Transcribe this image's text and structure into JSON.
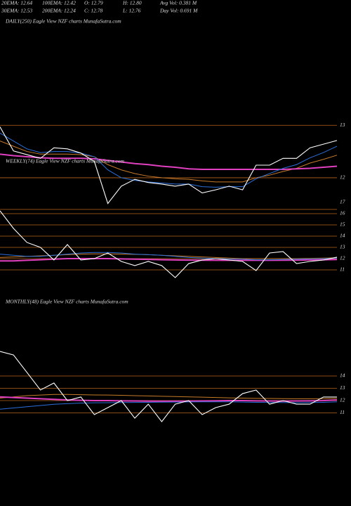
{
  "header": {
    "rows": [
      [
        "20EMA: 12.64",
        "100EMA: 12.42",
        "O: 12.79",
        "H: 12.80",
        "Avg Vol: 0.381 M"
      ],
      [
        "30EMA: 12.53",
        "200EMA: 12.24",
        "C: 12.78",
        "L: 12.76",
        "Day Vol: 0.691 M"
      ]
    ]
  },
  "chart_data": [
    {
      "type": "line",
      "title": "DAILY(250) Eagle  View  NZF charts MunafaSutra.com",
      "ylim": [
        11.37,
        13.11
      ],
      "yticks": [
        13,
        12
      ],
      "grid": true,
      "annotation": "17",
      "series": [
        {
          "color": "#c87a2a",
          "values": [
            12.7,
            12.6,
            12.5,
            12.45,
            12.45,
            12.45,
            12.44,
            12.4,
            12.25,
            12.15,
            12.08,
            12.03,
            12.0,
            11.98,
            11.97,
            11.94,
            11.92,
            11.92,
            11.92,
            12.0,
            12.05,
            12.12,
            12.18,
            12.28,
            12.35,
            12.43
          ]
        },
        {
          "color": "#e040c0",
          "values": [
            12.45,
            12.42,
            12.4,
            12.38,
            12.37,
            12.37,
            12.37,
            12.36,
            12.33,
            12.3,
            12.27,
            12.25,
            12.22,
            12.2,
            12.17,
            12.16,
            12.16,
            12.16,
            12.16,
            12.16,
            12.16,
            12.16,
            12.17,
            12.18,
            12.2,
            12.22
          ]
        },
        {
          "color": "#2a6fdb",
          "values": [
            12.85,
            12.7,
            12.55,
            12.48,
            12.5,
            12.5,
            12.47,
            12.4,
            12.15,
            12.0,
            11.95,
            11.92,
            11.9,
            11.88,
            11.88,
            11.83,
            11.82,
            11.83,
            11.83,
            11.98,
            12.08,
            12.18,
            12.25,
            12.38,
            12.48,
            12.6
          ]
        },
        {
          "color": "#ffffff",
          "values": [
            12.97,
            12.51,
            12.44,
            12.37,
            12.57,
            12.55,
            12.47,
            12.31,
            11.51,
            11.84,
            11.97,
            11.91,
            11.88,
            11.84,
            11.88,
            11.71,
            11.77,
            11.84,
            11.77,
            12.24,
            12.24,
            12.37,
            12.37,
            12.57,
            12.64,
            12.71
          ]
        }
      ]
    },
    {
      "type": "line",
      "title": "WEEKLY(74) Eagle  View  NZF charts MunafaSutra.com",
      "ylim": [
        8.75,
        16.25
      ],
      "yticks": [
        16,
        15,
        14,
        13,
        12,
        11
      ],
      "grid": true,
      "series": [
        {
          "color": "#c87a2a",
          "values": [
            12.1,
            12.15,
            12.2,
            12.25,
            12.3,
            12.35,
            12.4,
            12.42,
            12.42,
            12.4,
            12.38,
            12.35,
            12.3,
            12.25,
            12.2,
            12.15,
            12.1,
            12.05,
            12.0,
            12.0,
            12.0,
            12.0,
            12.0,
            12.02,
            12.05,
            12.08
          ]
        },
        {
          "color": "#e040c0",
          "values": [
            11.8,
            11.8,
            11.85,
            11.9,
            11.95,
            12.0,
            12.0,
            12.0,
            12.0,
            11.98,
            11.95,
            11.93,
            11.9,
            11.88,
            11.87,
            11.86,
            11.85,
            11.85,
            11.85,
            11.85,
            11.85,
            11.86,
            11.87,
            11.88,
            11.9,
            11.92
          ]
        },
        {
          "color": "#2a6fdb",
          "values": [
            12.4,
            12.3,
            12.2,
            12.2,
            12.3,
            12.4,
            12.5,
            12.55,
            12.55,
            12.5,
            12.4,
            12.35,
            12.3,
            12.2,
            12.1,
            12.05,
            12.0,
            11.98,
            11.95,
            11.9,
            11.9,
            11.92,
            11.95,
            11.98,
            12.0,
            12.05
          ]
        },
        {
          "color": "#ffffff",
          "values": [
            16.25,
            14.69,
            13.44,
            13.0,
            11.88,
            13.25,
            11.88,
            12.0,
            12.5,
            11.75,
            11.38,
            11.75,
            11.38,
            10.31,
            11.56,
            11.88,
            12.0,
            11.88,
            11.75,
            10.94,
            12.5,
            12.63,
            11.56,
            11.75,
            11.88,
            12.13
          ]
        }
      ]
    },
    {
      "type": "line",
      "title": "MONTHLY(48) Eagle  View  NZF charts MunafaSutra.com",
      "ylim": [
        3.43,
        20
      ],
      "yticks": [
        14,
        13,
        12,
        11
      ],
      "grid": true,
      "series": [
        {
          "color": "#c87a2a",
          "values": [
            12.2,
            12.3,
            12.4,
            12.45,
            12.5,
            12.5,
            12.48,
            12.46,
            12.45,
            12.43,
            12.4,
            12.38,
            12.35,
            12.33,
            12.3,
            12.28,
            12.25,
            12.22,
            12.2,
            12.18,
            12.17,
            12.16,
            12.15,
            12.15,
            12.16,
            12.18
          ]
        },
        {
          "color": "#e040c0",
          "values": [
            12.3,
            12.25,
            12.2,
            12.15,
            12.1,
            12.05,
            12.02,
            12.0,
            12.0,
            11.98,
            11.97,
            11.96,
            11.95,
            11.95,
            11.96,
            11.97,
            11.98,
            12.0,
            12.0,
            11.98,
            11.97,
            11.96,
            11.97,
            11.98,
            12.0,
            12.05
          ]
        },
        {
          "color": "#2a6fdb",
          "values": [
            11.3,
            11.4,
            11.5,
            11.6,
            11.7,
            11.75,
            11.8,
            11.82,
            11.83,
            11.84,
            11.85,
            11.86,
            11.87,
            11.88,
            11.89,
            11.9,
            11.9,
            11.9,
            11.88,
            11.86,
            11.85,
            11.84,
            11.83,
            11.84,
            11.86,
            11.9
          ]
        },
        {
          "color": "#ffffff",
          "values": [
            16.0,
            15.71,
            14.29,
            12.86,
            13.43,
            12.0,
            12.29,
            10.86,
            11.43,
            12.0,
            10.57,
            11.71,
            10.29,
            11.71,
            12.0,
            10.86,
            11.43,
            11.71,
            12.57,
            12.86,
            11.71,
            12.0,
            11.71,
            11.71,
            12.29,
            12.29
          ]
        }
      ]
    }
  ]
}
